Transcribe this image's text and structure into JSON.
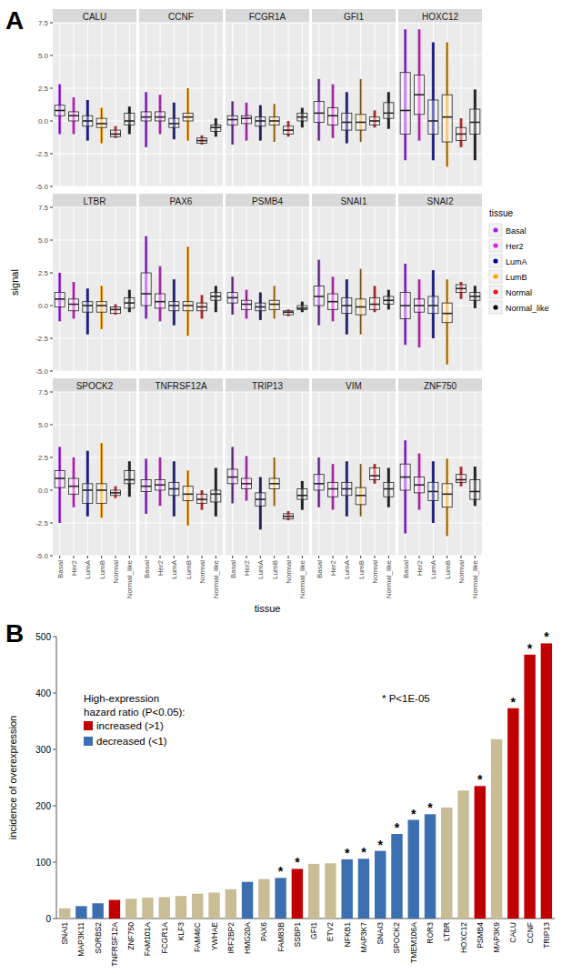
{
  "chart_data": [
    {
      "type": "box",
      "panel": "A",
      "y_label": "signal",
      "x_label": "tissue",
      "legend_title": "tissue",
      "legend": "right",
      "grid": true,
      "categories": [
        "Basal",
        "Her2",
        "LumA",
        "LumB",
        "Normal",
        "Normal_like"
      ],
      "colors": [
        "#a020f0",
        "#e31ae3",
        "#00008b",
        "#ffa500",
        "#e41a1c",
        "#000000"
      ],
      "ylim": [
        -5,
        7.5
      ],
      "yticks": [
        {
          "value": -5,
          "label": "-5.0"
        },
        {
          "value": -2.5,
          "label": "-2.5"
        },
        {
          "value": 0,
          "label": "0.0"
        },
        {
          "value": 2.5,
          "label": "2.5"
        },
        {
          "value": 5,
          "label": "5.0"
        },
        {
          "value": 7.5,
          "label": "7.5"
        }
      ],
      "facets": [
        {
          "title": "CALU",
          "boxes": [
            {
              "min": -1.0,
              "q1": 0.4,
              "median": 0.8,
              "q3": 1.2,
              "max": 2.8
            },
            {
              "min": -1.0,
              "q1": 0.0,
              "median": 0.4,
              "q3": 0.7,
              "max": 1.8
            },
            {
              "min": -1.5,
              "q1": -0.4,
              "median": 0.0,
              "q3": 0.4,
              "max": 1.6
            },
            {
              "min": -1.7,
              "q1": -0.5,
              "median": -0.2,
              "q3": 0.2,
              "max": 1.0
            },
            {
              "min": -1.3,
              "q1": -1.2,
              "median": -1.0,
              "q3": -0.7,
              "max": -0.4
            },
            {
              "min": -1.0,
              "q1": -0.3,
              "median": 0.0,
              "q3": 0.6,
              "max": 1.1
            }
          ]
        },
        {
          "title": "CCNF",
          "boxes": [
            {
              "min": -2.0,
              "q1": 0.0,
              "median": 0.3,
              "q3": 0.7,
              "max": 2.2
            },
            {
              "min": -1.0,
              "q1": 0.0,
              "median": 0.3,
              "q3": 0.7,
              "max": 2.0
            },
            {
              "min": -1.4,
              "q1": -0.5,
              "median": -0.2,
              "q3": 0.2,
              "max": 1.4
            },
            {
              "min": -1.5,
              "q1": 0.0,
              "median": 0.3,
              "q3": 0.6,
              "max": 2.5
            },
            {
              "min": -1.8,
              "q1": -1.7,
              "median": -1.5,
              "q3": -1.3,
              "max": -1.1
            },
            {
              "min": -1.2,
              "q1": -0.8,
              "median": -0.5,
              "q3": -0.3,
              "max": 0.2
            }
          ]
        },
        {
          "title": "FCGR1A",
          "boxes": [
            {
              "min": -1.8,
              "q1": -0.3,
              "median": 0.1,
              "q3": 0.4,
              "max": 1.5
            },
            {
              "min": -1.5,
              "q1": -0.2,
              "median": 0.2,
              "q3": 0.4,
              "max": 1.4
            },
            {
              "min": -1.5,
              "q1": -0.4,
              "median": 0.0,
              "q3": 0.3,
              "max": 1.2
            },
            {
              "min": -1.6,
              "q1": -0.3,
              "median": 0.0,
              "q3": 0.3,
              "max": 1.3
            },
            {
              "min": -1.2,
              "q1": -1.0,
              "median": -0.7,
              "q3": -0.4,
              "max": 0.0
            },
            {
              "min": -0.5,
              "q1": 0.0,
              "median": 0.3,
              "q3": 0.6,
              "max": 1.0
            }
          ]
        },
        {
          "title": "GFI1",
          "boxes": [
            {
              "min": -1.5,
              "q1": -0.1,
              "median": 0.6,
              "q3": 1.5,
              "max": 3.2
            },
            {
              "min": -1.3,
              "q1": -0.3,
              "median": 0.4,
              "q3": 1.0,
              "max": 2.8
            },
            {
              "min": -1.7,
              "q1": -0.7,
              "median": -0.1,
              "q3": 0.6,
              "max": 2.2
            },
            {
              "min": -1.6,
              "q1": -0.7,
              "median": -0.1,
              "q3": 0.5,
              "max": 3.2
            },
            {
              "min": -0.5,
              "q1": -0.3,
              "median": 0.0,
              "q3": 0.3,
              "max": 0.8
            },
            {
              "min": -0.6,
              "q1": 0.2,
              "median": 0.6,
              "q3": 1.4,
              "max": 2.2
            }
          ]
        },
        {
          "title": "HOXC12",
          "boxes": [
            {
              "min": -3.0,
              "q1": -1.0,
              "median": 0.8,
              "q3": 3.7,
              "max": 7.0
            },
            {
              "min": -1.5,
              "q1": 0.5,
              "median": 2.0,
              "q3": 3.5,
              "max": 7.0
            },
            {
              "min": -3.0,
              "q1": -1.0,
              "median": 0.0,
              "q3": 1.6,
              "max": 6.0
            },
            {
              "min": -3.5,
              "q1": -1.6,
              "median": 0.3,
              "q3": 2.0,
              "max": 6.0
            },
            {
              "min": -2.0,
              "q1": -1.5,
              "median": -1.0,
              "q3": -0.5,
              "max": 0.2
            },
            {
              "min": -3.0,
              "q1": -1.0,
              "median": -0.1,
              "q3": 0.9,
              "max": 2.4
            }
          ]
        },
        {
          "title": "LTBR",
          "boxes": [
            {
              "min": -1.2,
              "q1": -0.1,
              "median": 0.5,
              "q3": 1.0,
              "max": 2.5
            },
            {
              "min": -1.0,
              "q1": -0.4,
              "median": 0.1,
              "q3": 0.5,
              "max": 1.8
            },
            {
              "min": -2.2,
              "q1": -0.5,
              "median": 0.0,
              "q3": 0.3,
              "max": 1.3
            },
            {
              "min": -1.8,
              "q1": -0.5,
              "median": 0.0,
              "q3": 0.3,
              "max": 1.5
            },
            {
              "min": -0.7,
              "q1": -0.6,
              "median": -0.3,
              "q3": -0.1,
              "max": 0.1
            },
            {
              "min": -0.5,
              "q1": -0.2,
              "median": 0.2,
              "q3": 0.6,
              "max": 1.2
            }
          ]
        },
        {
          "title": "PAX6",
          "boxes": [
            {
              "min": -1.0,
              "q1": 0.0,
              "median": 0.9,
              "q3": 2.5,
              "max": 5.3
            },
            {
              "min": -1.2,
              "q1": -0.2,
              "median": 0.3,
              "q3": 0.9,
              "max": 3.0
            },
            {
              "min": -1.5,
              "q1": -0.4,
              "median": 0.0,
              "q3": 0.3,
              "max": 2.0
            },
            {
              "min": -2.3,
              "q1": -0.4,
              "median": 0.0,
              "q3": 0.3,
              "max": 4.5
            },
            {
              "min": -1.0,
              "q1": -0.4,
              "median": -0.1,
              "q3": 0.2,
              "max": 0.8
            },
            {
              "min": -0.5,
              "q1": 0.4,
              "median": 0.7,
              "q3": 1.0,
              "max": 1.5
            }
          ]
        },
        {
          "title": "PSMB4",
          "boxes": [
            {
              "min": -0.7,
              "q1": 0.2,
              "median": 0.6,
              "q3": 1.0,
              "max": 2.2
            },
            {
              "min": -1.0,
              "q1": -0.3,
              "median": 0.1,
              "q3": 0.4,
              "max": 1.2
            },
            {
              "min": -1.1,
              "q1": -0.4,
              "median": -0.1,
              "q3": 0.2,
              "max": 1.0
            },
            {
              "min": -1.0,
              "q1": -0.3,
              "median": 0.1,
              "q3": 0.4,
              "max": 1.5
            },
            {
              "min": -0.8,
              "q1": -0.7,
              "median": -0.5,
              "q3": -0.4,
              "max": -0.3
            },
            {
              "min": -0.5,
              "q1": -0.3,
              "median": -0.2,
              "q3": 0.0,
              "max": 0.3
            }
          ]
        },
        {
          "title": "SNAI1",
          "boxes": [
            {
              "min": -1.5,
              "q1": 0.0,
              "median": 0.7,
              "q3": 1.5,
              "max": 3.5
            },
            {
              "min": -1.2,
              "q1": -0.3,
              "median": 0.3,
              "q3": 0.9,
              "max": 2.2
            },
            {
              "min": -2.2,
              "q1": -0.6,
              "median": 0.0,
              "q3": 0.6,
              "max": 2.0
            },
            {
              "min": -2.2,
              "q1": -0.7,
              "median": -0.1,
              "q3": 0.5,
              "max": 2.8
            },
            {
              "min": -0.5,
              "q1": -0.3,
              "median": 0.1,
              "q3": 0.6,
              "max": 1.5
            },
            {
              "min": -0.3,
              "q1": 0.1,
              "median": 0.4,
              "q3": 0.7,
              "max": 1.2
            }
          ]
        },
        {
          "title": "SNAI2",
          "boxes": [
            {
              "min": -3.0,
              "q1": -1.0,
              "median": 0.0,
              "q3": 1.0,
              "max": 3.2
            },
            {
              "min": -3.2,
              "q1": -0.5,
              "median": 0.0,
              "q3": 0.5,
              "max": 2.0
            },
            {
              "min": -2.5,
              "q1": -0.6,
              "median": 0.0,
              "q3": 0.7,
              "max": 2.7
            },
            {
              "min": -4.5,
              "q1": -1.3,
              "median": -0.6,
              "q3": 0.2,
              "max": 2.0
            },
            {
              "min": 0.5,
              "q1": 1.0,
              "median": 1.3,
              "q3": 1.6,
              "max": 1.8
            },
            {
              "min": -0.2,
              "q1": 0.4,
              "median": 0.7,
              "q3": 1.0,
              "max": 1.5
            }
          ]
        },
        {
          "title": "SPOCK2",
          "boxes": [
            {
              "min": -2.5,
              "q1": 0.2,
              "median": 0.9,
              "q3": 1.5,
              "max": 3.3
            },
            {
              "min": -1.3,
              "q1": -0.3,
              "median": 0.3,
              "q3": 0.9,
              "max": 2.5
            },
            {
              "min": -2.0,
              "q1": -1.0,
              "median": 0.0,
              "q3": 0.5,
              "max": 3.0
            },
            {
              "min": -2.1,
              "q1": -1.0,
              "median": 0.0,
              "q3": 0.5,
              "max": 3.6
            },
            {
              "min": -0.6,
              "q1": -0.4,
              "median": -0.2,
              "q3": 0.0,
              "max": 0.3
            },
            {
              "min": -0.5,
              "q1": 0.5,
              "median": 0.8,
              "q3": 1.5,
              "max": 2.2
            }
          ]
        },
        {
          "title": "TNFRSF12A",
          "boxes": [
            {
              "min": -1.8,
              "q1": -0.1,
              "median": 0.3,
              "q3": 0.8,
              "max": 2.4
            },
            {
              "min": -1.2,
              "q1": 0.0,
              "median": 0.4,
              "q3": 0.8,
              "max": 2.5
            },
            {
              "min": -2.0,
              "q1": -0.4,
              "median": 0.1,
              "q3": 0.6,
              "max": 2.2
            },
            {
              "min": -2.7,
              "q1": -0.8,
              "median": -0.3,
              "q3": 0.3,
              "max": 1.5
            },
            {
              "min": -1.5,
              "q1": -1.0,
              "median": -0.7,
              "q3": -0.3,
              "max": 0.0
            },
            {
              "min": -2.0,
              "q1": -0.9,
              "median": -0.3,
              "q3": 0.0,
              "max": 1.7
            }
          ]
        },
        {
          "title": "TRIP13",
          "boxes": [
            {
              "min": -1.0,
              "q1": 0.5,
              "median": 1.0,
              "q3": 1.6,
              "max": 3.3
            },
            {
              "min": -0.8,
              "q1": 0.1,
              "median": 0.5,
              "q3": 0.9,
              "max": 2.6
            },
            {
              "min": -3.0,
              "q1": -1.2,
              "median": -0.7,
              "q3": -0.2,
              "max": 1.0
            },
            {
              "min": -1.2,
              "q1": 0.1,
              "median": 0.5,
              "q3": 0.9,
              "max": 2.5
            },
            {
              "min": -2.3,
              "q1": -2.2,
              "median": -2.0,
              "q3": -1.8,
              "max": -1.6
            },
            {
              "min": -1.5,
              "q1": -0.7,
              "median": -0.4,
              "q3": 0.1,
              "max": 0.7
            }
          ]
        },
        {
          "title": "VIM",
          "boxes": [
            {
              "min": -1.3,
              "q1": 0.0,
              "median": 0.5,
              "q3": 1.2,
              "max": 2.5
            },
            {
              "min": -1.5,
              "q1": -0.5,
              "median": 0.1,
              "q3": 0.6,
              "max": 2.0
            },
            {
              "min": -2.0,
              "q1": -0.4,
              "median": 0.1,
              "q3": 0.6,
              "max": 2.2
            },
            {
              "min": -2.0,
              "q1": -1.1,
              "median": -0.4,
              "q3": 0.2,
              "max": 2.0
            },
            {
              "min": 0.5,
              "q1": 0.8,
              "median": 1.1,
              "q3": 1.7,
              "max": 2.0
            },
            {
              "min": -1.3,
              "q1": -0.5,
              "median": 0.1,
              "q3": 0.6,
              "max": 1.7
            }
          ]
        },
        {
          "title": "ZNF750",
          "boxes": [
            {
              "min": -3.3,
              "q1": 0.0,
              "median": 1.0,
              "q3": 2.0,
              "max": 3.8
            },
            {
              "min": -1.5,
              "q1": -0.2,
              "median": 0.4,
              "q3": 1.0,
              "max": 2.8
            },
            {
              "min": -2.5,
              "q1": -0.8,
              "median": -0.1,
              "q3": 0.6,
              "max": 2.2
            },
            {
              "min": -3.5,
              "q1": -1.3,
              "median": -0.3,
              "q3": 0.5,
              "max": 2.4
            },
            {
              "min": 0.3,
              "q1": 0.6,
              "median": 0.8,
              "q3": 1.2,
              "max": 1.8
            },
            {
              "min": -1.2,
              "q1": -0.7,
              "median": -0.1,
              "q3": 0.8,
              "max": 1.8
            }
          ]
        }
      ]
    },
    {
      "type": "bar",
      "panel": "B",
      "y_label": "incidence of overexpression",
      "grid": false,
      "legend": "upper left",
      "categories": [
        "SNAI1",
        "MAP3K11",
        "SORBS2",
        "TNFRSF12A",
        "ZNF750",
        "FAM101A",
        "FCGR1A",
        "KLF3",
        "FAM46C",
        "YWHAE",
        "IRF2BP2",
        "HMG20A",
        "PAX6",
        "FAM83B",
        "SSBP1",
        "GFI1",
        "ETV2",
        "NFKB1",
        "MAP3K7",
        "SNAI3",
        "SPOCK2",
        "TMEM106A",
        "ROR3",
        "LTBR",
        "HOXC12",
        "PSMB4",
        "MAP3K9",
        "CALU",
        "CCNF",
        "TRIP13"
      ],
      "values": [
        18,
        22,
        27,
        33,
        35,
        37,
        38,
        40,
        44,
        46,
        52,
        65,
        70,
        72,
        88,
        97,
        98,
        105,
        106,
        120,
        150,
        175,
        185,
        197,
        227,
        235,
        318,
        373,
        468,
        488
      ],
      "colors": [
        "#c9bd95",
        "#3c6fb0",
        "#3c6fb0",
        "#c00000",
        "#c9bd95",
        "#c9bd95",
        "#c9bd95",
        "#c9bd95",
        "#c9bd95",
        "#c9bd95",
        "#c9bd95",
        "#3c6fb0",
        "#c9bd95",
        "#3c6fb0",
        "#c00000",
        "#c9bd95",
        "#c9bd95",
        "#3c6fb0",
        "#3c6fb0",
        "#3c6fb0",
        "#3c6fb0",
        "#3c6fb0",
        "#3c6fb0",
        "#c9bd95",
        "#c9bd95",
        "#c00000",
        "#c9bd95",
        "#c00000",
        "#c00000",
        "#c00000"
      ],
      "bar_labels": [
        null,
        null,
        null,
        null,
        null,
        null,
        null,
        null,
        null,
        null,
        null,
        null,
        null,
        "*",
        "*",
        null,
        null,
        "*",
        "*",
        "*",
        "*",
        "*",
        "*",
        null,
        null,
        "*",
        null,
        "*",
        "*",
        "*"
      ],
      "ylim": [
        0,
        500
      ],
      "yticks": [
        0,
        100,
        200,
        300,
        400,
        500
      ],
      "legend_title": [
        "High-expression",
        "hazard ratio (P<0.05):"
      ],
      "legend_entries": [
        {
          "name": "increased (>1)",
          "color": "#c00000"
        },
        {
          "name": "decreased (<1)",
          "color": "#3c6fb0"
        }
      ],
      "annotation": "* P<1E-05"
    }
  ]
}
